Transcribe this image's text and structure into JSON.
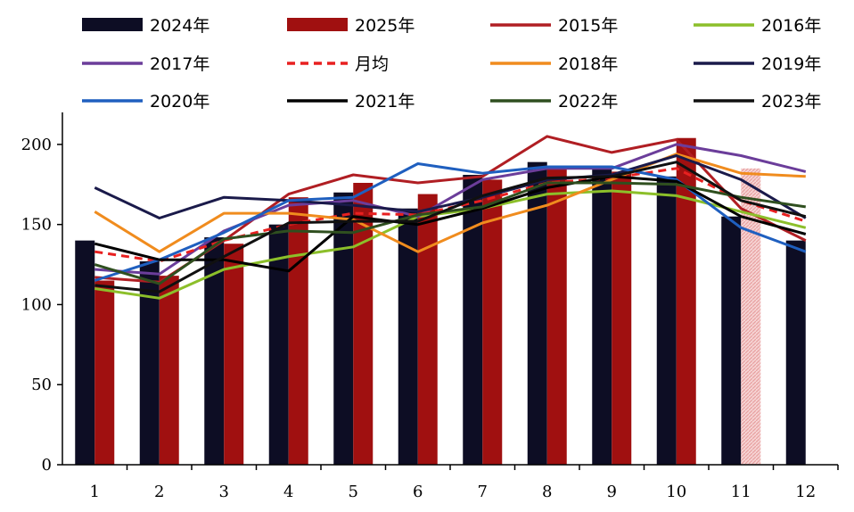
{
  "chart_data": {
    "type": "bar",
    "title": "",
    "xlabel": "",
    "ylabel": "",
    "categories": [
      "1",
      "2",
      "3",
      "4",
      "5",
      "6",
      "7",
      "8",
      "9",
      "10",
      "11",
      "12"
    ],
    "ylim": [
      0,
      220
    ],
    "yticks": [
      0,
      50,
      100,
      150,
      200
    ],
    "grid": false,
    "legend_position": "top",
    "bars": [
      {
        "name": "2024年",
        "color": "#0d0d24",
        "values": [
          140,
          127,
          142,
          150,
          170,
          160,
          181,
          189,
          185,
          180,
          155,
          140
        ]
      },
      {
        "name": "2025年",
        "color": "#a01010",
        "values": [
          115,
          118,
          138,
          167,
          176,
          169,
          178,
          185,
          183,
          204,
          185,
          null
        ],
        "hatched_index": 10,
        "hatched_color": "#e8a0a0"
      }
    ],
    "lines": [
      {
        "name": "2015年",
        "color": "#b01e23",
        "dashed": false,
        "values": [
          117,
          114,
          140,
          169,
          181,
          176,
          180,
          205,
          195,
          203,
          160,
          140
        ]
      },
      {
        "name": "2016年",
        "color": "#8cbf2a",
        "dashed": false,
        "values": [
          110,
          104,
          122,
          130,
          136,
          155,
          160,
          169,
          171,
          168,
          158,
          148
        ]
      },
      {
        "name": "2017年",
        "color": "#6b3d9a",
        "dashed": false,
        "values": [
          122,
          119,
          146,
          162,
          165,
          155,
          178,
          185,
          185,
          200,
          193,
          183
        ]
      },
      {
        "name": "月均",
        "color": "#e82020",
        "dashed": true,
        "values": [
          133,
          127,
          140,
          150,
          157,
          156,
          165,
          176,
          179,
          185,
          165,
          152
        ]
      },
      {
        "name": "2018年",
        "color": "#f08c1e",
        "dashed": false,
        "values": [
          158,
          133,
          157,
          157,
          153,
          133,
          151,
          162,
          178,
          194,
          182,
          180
        ]
      },
      {
        "name": "2019年",
        "color": "#1a1a4a",
        "dashed": false,
        "values": [
          173,
          154,
          167,
          165,
          162,
          158,
          167,
          178,
          181,
          193,
          178,
          154
        ]
      },
      {
        "name": "2020年",
        "color": "#1f5fbf",
        "dashed": false,
        "values": [
          115,
          128,
          145,
          165,
          167,
          188,
          182,
          186,
          186,
          178,
          148,
          133
        ]
      },
      {
        "name": "2021年",
        "color": "#000000",
        "dashed": false,
        "values": [
          138,
          128,
          128,
          121,
          155,
          150,
          160,
          173,
          180,
          177,
          155,
          144
        ]
      },
      {
        "name": "2022年",
        "color": "#2f4f1f",
        "dashed": false,
        "values": [
          125,
          113,
          141,
          146,
          145,
          156,
          161,
          176,
          176,
          175,
          167,
          161
        ]
      },
      {
        "name": "2023年",
        "color": "#101010",
        "dashed": false,
        "values": [
          112,
          108,
          130,
          151,
          152,
          152,
          168,
          179,
          180,
          189,
          165,
          155
        ]
      }
    ]
  }
}
